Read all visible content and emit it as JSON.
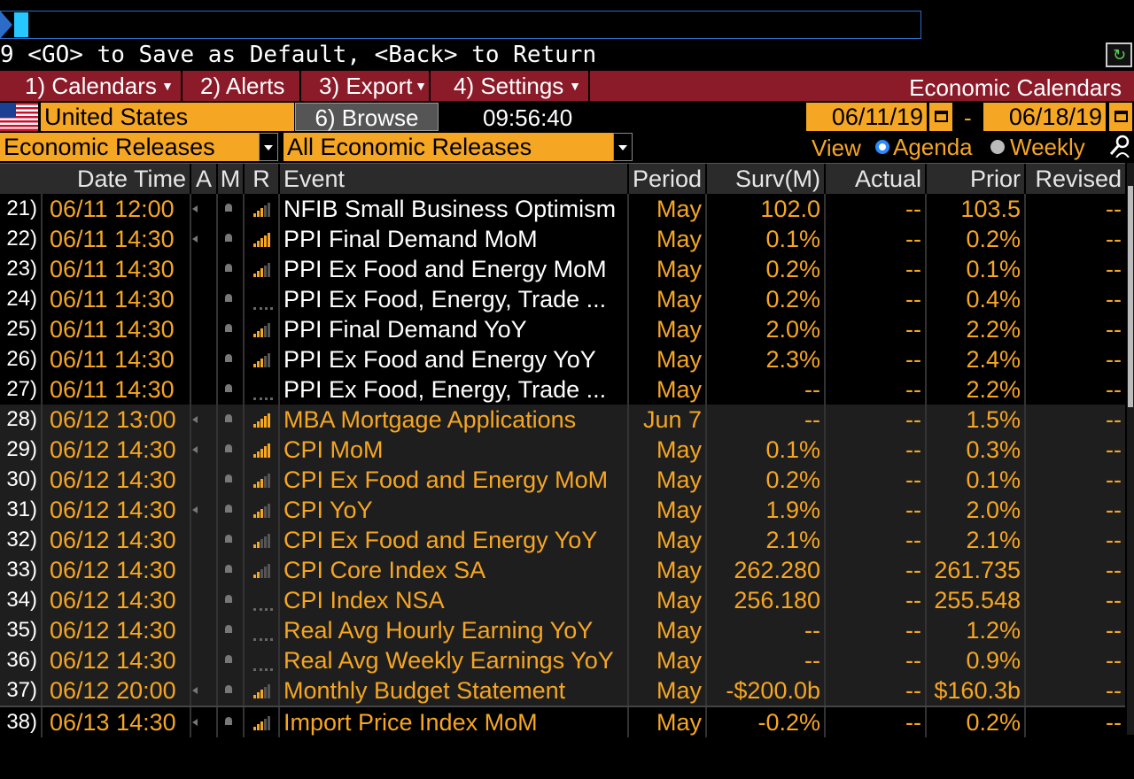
{
  "command_hint": "9 <GO> to Save as Default, <Back> to Return",
  "menu": {
    "items": [
      {
        "label": "1) Calendars"
      },
      {
        "label": "2) Alerts"
      },
      {
        "label": "3) Export"
      },
      {
        "label": "4) Settings"
      }
    ],
    "title": "Economic Calendars"
  },
  "toolbar": {
    "country": "United States",
    "browse_label": "6) Browse",
    "time": "09:56:40",
    "date_from": "06/11/19",
    "date_separator": "-",
    "date_to": "06/18/19",
    "release_type": "Economic Releases",
    "release_filter": "All Economic Releases",
    "view_label": "View",
    "view_options": [
      "Agenda",
      "Weekly"
    ],
    "view_selected": "Agenda"
  },
  "table": {
    "headers": {
      "datetime": "Date Time",
      "a": "A",
      "m": "M",
      "r": "R",
      "event": "Event",
      "period": "Period",
      "surv": "Surv(M)",
      "actual": "Actual",
      "prior": "Prior",
      "revised": "Revised"
    },
    "rows": [
      {
        "num": "21)",
        "datetime": "06/11 12:00",
        "alert": true,
        "rel": 3,
        "event": "NFIB Small Business Optimism",
        "period": "May",
        "surv": "102.0",
        "actual": "--",
        "prior": "103.5",
        "revised": "--",
        "group": 0
      },
      {
        "num": "22)",
        "datetime": "06/11 14:30",
        "alert": true,
        "rel": 5,
        "event": "PPI Final Demand MoM",
        "period": "May",
        "surv": "0.1%",
        "actual": "--",
        "prior": "0.2%",
        "revised": "--",
        "group": 0
      },
      {
        "num": "23)",
        "datetime": "06/11 14:30",
        "alert": false,
        "rel": 3,
        "event": "PPI Ex Food and Energy MoM",
        "period": "May",
        "surv": "0.2%",
        "actual": "--",
        "prior": "0.1%",
        "revised": "--",
        "group": 0
      },
      {
        "num": "24)",
        "datetime": "06/11 14:30",
        "alert": false,
        "rel": 0,
        "event": "PPI Ex Food, Energy, Trade ...",
        "period": "May",
        "surv": "0.2%",
        "actual": "--",
        "prior": "0.4%",
        "revised": "--",
        "group": 0
      },
      {
        "num": "25)",
        "datetime": "06/11 14:30",
        "alert": false,
        "rel": 3,
        "event": "PPI Final Demand YoY",
        "period": "May",
        "surv": "2.0%",
        "actual": "--",
        "prior": "2.2%",
        "revised": "--",
        "group": 0
      },
      {
        "num": "26)",
        "datetime": "06/11 14:30",
        "alert": false,
        "rel": 3,
        "event": "PPI Ex Food and Energy YoY",
        "period": "May",
        "surv": "2.3%",
        "actual": "--",
        "prior": "2.4%",
        "revised": "--",
        "group": 0
      },
      {
        "num": "27)",
        "datetime": "06/11 14:30",
        "alert": false,
        "rel": 0,
        "event": "PPI Ex Food, Energy, Trade ...",
        "period": "May",
        "surv": "--",
        "actual": "--",
        "prior": "2.2%",
        "revised": "--",
        "group": 0
      },
      {
        "num": "28)",
        "datetime": "06/12 13:00",
        "alert": true,
        "rel": 5,
        "event": "MBA Mortgage Applications",
        "period": "Jun 7",
        "surv": "--",
        "actual": "--",
        "prior": "1.5%",
        "revised": "--",
        "group": 1
      },
      {
        "num": "29)",
        "datetime": "06/12 14:30",
        "alert": true,
        "rel": 5,
        "event": "CPI MoM",
        "period": "May",
        "surv": "0.1%",
        "actual": "--",
        "prior": "0.3%",
        "revised": "--",
        "group": 1
      },
      {
        "num": "30)",
        "datetime": "06/12 14:30",
        "alert": false,
        "rel": 3,
        "event": "CPI Ex Food and Energy MoM",
        "period": "May",
        "surv": "0.2%",
        "actual": "--",
        "prior": "0.1%",
        "revised": "--",
        "group": 1
      },
      {
        "num": "31)",
        "datetime": "06/12 14:30",
        "alert": true,
        "rel": 3,
        "event": "CPI YoY",
        "period": "May",
        "surv": "1.9%",
        "actual": "--",
        "prior": "2.0%",
        "revised": "--",
        "group": 1
      },
      {
        "num": "32)",
        "datetime": "06/12 14:30",
        "alert": false,
        "rel": 2,
        "event": "CPI Ex Food and Energy YoY",
        "period": "May",
        "surv": "2.1%",
        "actual": "--",
        "prior": "2.1%",
        "revised": "--",
        "group": 1
      },
      {
        "num": "33)",
        "datetime": "06/12 14:30",
        "alert": false,
        "rel": 2,
        "event": "CPI Core Index SA",
        "period": "May",
        "surv": "262.280",
        "actual": "--",
        "prior": "261.735",
        "revised": "--",
        "group": 1
      },
      {
        "num": "34)",
        "datetime": "06/12 14:30",
        "alert": false,
        "rel": 0,
        "event": "CPI Index NSA",
        "period": "May",
        "surv": "256.180",
        "actual": "--",
        "prior": "255.548",
        "revised": "--",
        "group": 1
      },
      {
        "num": "35)",
        "datetime": "06/12 14:30",
        "alert": false,
        "rel": 0,
        "event": "Real Avg Hourly Earning YoY",
        "period": "May",
        "surv": "--",
        "actual": "--",
        "prior": "1.2%",
        "revised": "--",
        "group": 1
      },
      {
        "num": "36)",
        "datetime": "06/12 14:30",
        "alert": false,
        "rel": 0,
        "event": "Real Avg Weekly Earnings YoY",
        "period": "May",
        "surv": "--",
        "actual": "--",
        "prior": "0.9%",
        "revised": "--",
        "group": 1
      },
      {
        "num": "37)",
        "datetime": "06/12 20:00",
        "alert": true,
        "rel": 3,
        "event": "Monthly Budget Statement",
        "period": "May",
        "surv": "-$200.0b",
        "actual": "--",
        "prior": "$160.3b",
        "revised": "--",
        "group": 1
      },
      {
        "num": "38)",
        "datetime": "06/13 14:30",
        "alert": true,
        "rel": 3,
        "event": "Import Price Index MoM",
        "period": "May",
        "surv": "-0.2%",
        "actual": "--",
        "prior": "0.2%",
        "revised": "--",
        "group": 2
      }
    ]
  },
  "colors": {
    "accent": "#f5a623",
    "menubar": "#8c1b2a",
    "command_border": "#2a6cc8"
  },
  "icons": {
    "corner": "refresh-icon",
    "search": "search-people-icon",
    "alert": "speaker-icon",
    "monitor": "bell-icon",
    "relevance": "signal-bars-icon"
  }
}
